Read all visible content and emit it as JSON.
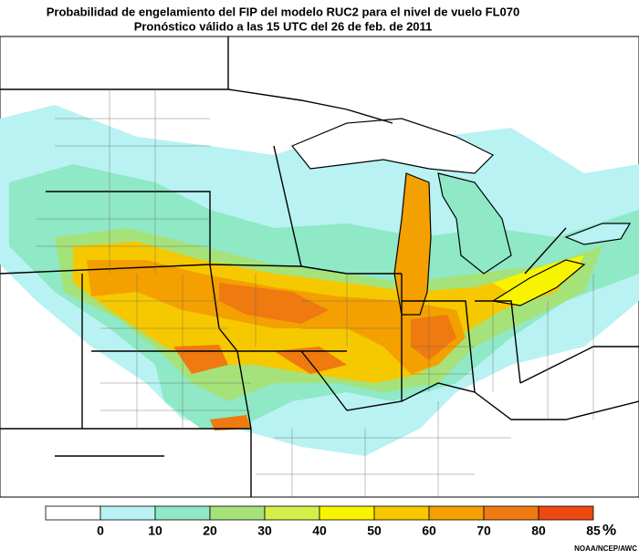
{
  "header": {
    "title": "Probabilidad de engelamiento del FIP del modelo RUC2 para el nivel de vuelo FL070",
    "subtitle": "Pronóstico válido a las 15 UTC del 26 de feb. de 2011"
  },
  "legend": {
    "ticks": [
      0,
      10,
      20,
      30,
      40,
      50,
      60,
      70,
      80,
      85
    ],
    "unit": "%",
    "colors": [
      "#ffffff",
      "#b9f2f2",
      "#8fe8c6",
      "#a6e27a",
      "#d4ee4a",
      "#f8f400",
      "#f6c800",
      "#f4a000",
      "#ee7a10",
      "#ec4a10"
    ]
  },
  "credit": "NOAA/NCEP/AWC"
}
